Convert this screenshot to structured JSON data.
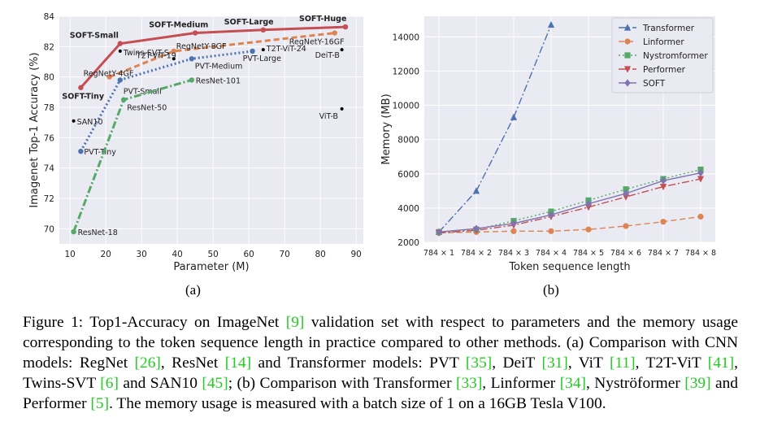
{
  "chart_data": [
    {
      "type": "line",
      "xlabel": "Parameter (M)",
      "ylabel": "Imagenet Top-1 Accuracy (%)",
      "xlim": [
        7,
        92
      ],
      "ylim": [
        69,
        84
      ],
      "xticks": [
        10,
        20,
        30,
        40,
        50,
        60,
        70,
        80,
        90
      ],
      "yticks": [
        70,
        72,
        74,
        76,
        78,
        80,
        82,
        84
      ],
      "grid": true,
      "series": [
        {
          "name": "SOFT",
          "color": "#c44e52",
          "style": "solid",
          "marker": "circle",
          "x": [
            13,
            24,
            45,
            64,
            87
          ],
          "y": [
            79.3,
            82.2,
            82.9,
            83.1,
            83.3
          ],
          "labels": [
            "SOFT-Tiny",
            "SOFT-Small",
            "SOFT-Medium",
            "SOFT-Large",
            "SOFT-Huge"
          ]
        },
        {
          "name": "RegNet",
          "color": "#dd8452",
          "style": "dashed",
          "marker": "circle",
          "x": [
            21,
            39,
            84
          ],
          "y": [
            80.0,
            81.7,
            82.9
          ],
          "labels": [
            "RegNetY-4GF",
            "RegNetY-8GF",
            "RegNetY-16GF"
          ]
        },
        {
          "name": "PVT",
          "color": "#4c72b0",
          "style": "dotted",
          "marker": "circle",
          "x": [
            13,
            24,
            44,
            61
          ],
          "y": [
            75.1,
            79.8,
            81.2,
            81.7
          ],
          "labels": [
            "PVT-Tiny",
            "PVT-Small",
            "PVT-Medium",
            "PVT-Large"
          ]
        },
        {
          "name": "ResNet",
          "color": "#55a868",
          "style": "dashdot",
          "marker": "circle",
          "x": [
            11,
            25,
            44
          ],
          "y": [
            69.8,
            78.5,
            79.8
          ],
          "labels": [
            "ResNet-18",
            "ResNet-50",
            "ResNet-101"
          ]
        }
      ],
      "points": [
        {
          "label": "Twins-SVT-S",
          "x": 24,
          "y": 81.7
        },
        {
          "label": "T2T-ViT-19",
          "x": 39,
          "y": 81.2
        },
        {
          "label": "T2T-ViT-24",
          "x": 64,
          "y": 81.8
        },
        {
          "label": "DeiT-B",
          "x": 86,
          "y": 81.8
        },
        {
          "label": "ViT-B",
          "x": 86,
          "y": 77.9
        },
        {
          "label": "SAN10",
          "x": 11,
          "y": 77.1
        }
      ]
    },
    {
      "type": "line",
      "xlabel": "Token sequence length",
      "ylabel": "Memory (MB)",
      "categories": [
        "784 × 1",
        "784 × 2",
        "784 × 3",
        "784 × 4",
        "784 × 5",
        "784 × 6",
        "784 × 7",
        "784 × 8"
      ],
      "ylim": [
        2000,
        15200
      ],
      "yticks": [
        2000,
        4000,
        6000,
        8000,
        10000,
        12000,
        14000
      ],
      "grid": true,
      "legend": "top-right",
      "series": [
        {
          "name": "Transformer",
          "color": "#4c72b0",
          "style": "dashdot",
          "marker": "triangle",
          "values": [
            2600,
            5000,
            9300,
            14700,
            null,
            null,
            null,
            null
          ]
        },
        {
          "name": "Linformer",
          "color": "#dd8452",
          "style": "dashed",
          "marker": "circle",
          "values": [
            2550,
            2600,
            2650,
            2650,
            2750,
            2950,
            3200,
            3500
          ]
        },
        {
          "name": "Nystromformer",
          "color": "#55a868",
          "style": "dotted",
          "marker": "square",
          "values": [
            2600,
            2750,
            3250,
            3800,
            4450,
            5100,
            5700,
            6250
          ]
        },
        {
          "name": "Performer",
          "color": "#c44e52",
          "style": "dashdot",
          "marker": "triangle-down",
          "values": [
            2550,
            2700,
            3000,
            3500,
            4050,
            4650,
            5250,
            5700
          ]
        },
        {
          "name": "SOFT",
          "color": "#8172b2",
          "style": "solid",
          "marker": "diamond",
          "values": [
            2600,
            2800,
            3100,
            3600,
            4250,
            4850,
            5600,
            6050
          ]
        }
      ]
    }
  ],
  "subfig": {
    "a": "(a)",
    "b": "(b)"
  },
  "caption": [
    {
      "t": "Figure 1: Top1-Accuracy on ImageNet "
    },
    {
      "t": "[9]",
      "ref": true
    },
    {
      "t": " validation set with respect to parameters and the memory usage corresponding to the token sequence length in practice compared to other methods. (a) Comparison with CNN models: RegNet "
    },
    {
      "t": "[26]",
      "ref": true
    },
    {
      "t": ", ResNet "
    },
    {
      "t": "[14]",
      "ref": true
    },
    {
      "t": " and Transformer models: PVT "
    },
    {
      "t": "[35]",
      "ref": true
    },
    {
      "t": ", DeiT "
    },
    {
      "t": "[31]",
      "ref": true
    },
    {
      "t": ", ViT "
    },
    {
      "t": "[11]",
      "ref": true
    },
    {
      "t": ", T2T-ViT "
    },
    {
      "t": "[41]",
      "ref": true
    },
    {
      "t": ", Twins-SVT "
    },
    {
      "t": "[6]",
      "ref": true
    },
    {
      "t": " and SAN10 "
    },
    {
      "t": "[45]",
      "ref": true
    },
    {
      "t": "; (b) Comparison with Transformer "
    },
    {
      "t": "[33]",
      "ref": true
    },
    {
      "t": ", Linformer "
    },
    {
      "t": "[34]",
      "ref": true
    },
    {
      "t": ", Nyströformer "
    },
    {
      "t": "[39]",
      "ref": true
    },
    {
      "t": " and Performer "
    },
    {
      "t": "[5]",
      "ref": true
    },
    {
      "t": ". The memory usage is measured with a batch size of 1 on a 16GB Tesla V100."
    }
  ]
}
